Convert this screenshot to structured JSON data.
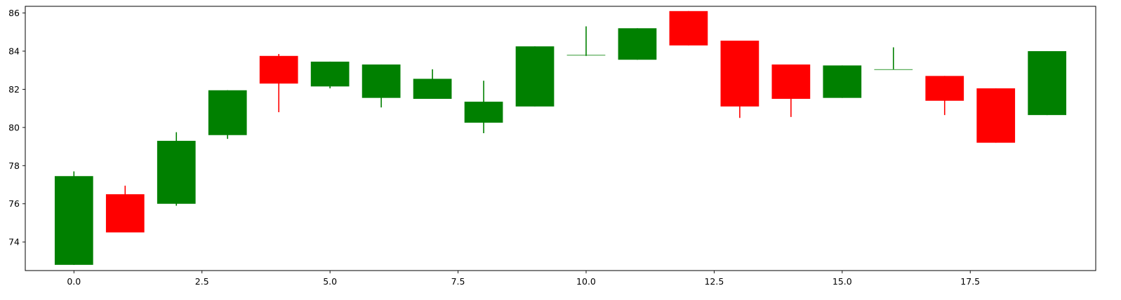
{
  "chart_data": {
    "type": "candlestick",
    "title": "",
    "xlabel": "",
    "ylabel": "",
    "xlim": [
      -0.95,
      19.95
    ],
    "ylim": [
      72.5,
      86.35
    ],
    "grid": false,
    "x_ticks": [
      0.0,
      2.5,
      5.0,
      7.5,
      10.0,
      12.5,
      15.0,
      17.5
    ],
    "x_tick_labels": [
      "0.0",
      "2.5",
      "5.0",
      "7.5",
      "10.0",
      "12.5",
      "15.0",
      "17.5"
    ],
    "y_ticks": [
      74,
      76,
      78,
      80,
      82,
      84,
      86
    ],
    "y_tick_labels": [
      "74",
      "76",
      "78",
      "80",
      "82",
      "84",
      "86"
    ],
    "up_color": "#008000",
    "down_color": "#ff0000",
    "candles": [
      {
        "x": 0,
        "open": 72.8,
        "close": 77.45,
        "low": 72.8,
        "high": 77.7
      },
      {
        "x": 1,
        "open": 76.5,
        "close": 74.5,
        "low": 74.5,
        "high": 76.95
      },
      {
        "x": 2,
        "open": 76.0,
        "close": 79.3,
        "low": 75.9,
        "high": 79.75
      },
      {
        "x": 3,
        "open": 79.6,
        "close": 81.95,
        "low": 79.4,
        "high": 81.95
      },
      {
        "x": 4,
        "open": 83.75,
        "close": 82.3,
        "low": 80.8,
        "high": 83.85
      },
      {
        "x": 5,
        "open": 82.15,
        "close": 83.45,
        "low": 82.05,
        "high": 83.45
      },
      {
        "x": 6,
        "open": 81.55,
        "close": 83.3,
        "low": 81.05,
        "high": 83.3
      },
      {
        "x": 7,
        "open": 81.5,
        "close": 82.55,
        "low": 81.5,
        "high": 83.05
      },
      {
        "x": 8,
        "open": 80.25,
        "close": 81.35,
        "low": 79.7,
        "high": 82.45
      },
      {
        "x": 9,
        "open": 81.1,
        "close": 84.25,
        "low": 81.1,
        "high": 84.25
      },
      {
        "x": 10,
        "open": 83.8,
        "close": 83.8,
        "low": 83.75,
        "high": 85.3
      },
      {
        "x": 11,
        "open": 83.55,
        "close": 85.2,
        "low": 83.55,
        "high": 85.2
      },
      {
        "x": 12,
        "open": 86.1,
        "close": 84.3,
        "low": 84.3,
        "high": 86.1
      },
      {
        "x": 13,
        "open": 84.55,
        "close": 81.1,
        "low": 80.5,
        "high": 84.55
      },
      {
        "x": 14,
        "open": 83.3,
        "close": 81.5,
        "low": 80.55,
        "high": 83.3
      },
      {
        "x": 15,
        "open": 81.55,
        "close": 83.25,
        "low": 81.55,
        "high": 83.25
      },
      {
        "x": 16,
        "open": 83.05,
        "close": 83.05,
        "low": 83.05,
        "high": 84.2
      },
      {
        "x": 17,
        "open": 82.7,
        "close": 81.4,
        "low": 80.65,
        "high": 82.7
      },
      {
        "x": 18,
        "open": 82.05,
        "close": 79.2,
        "low": 79.2,
        "high": 82.05
      },
      {
        "x": 19,
        "open": 80.65,
        "close": 84.0,
        "low": 80.65,
        "high": 84.0
      }
    ]
  }
}
